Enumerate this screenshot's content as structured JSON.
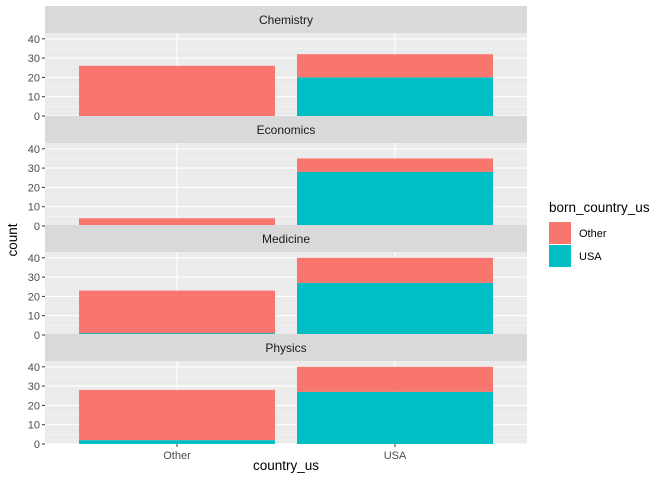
{
  "chart_data": {
    "type": "bar",
    "stacked": true,
    "facets": [
      "Chemistry",
      "Economics",
      "Medicine",
      "Physics"
    ],
    "categories": [
      "Other",
      "USA"
    ],
    "xlabel": "country_us",
    "ylabel": "count",
    "ylim": [
      0,
      43
    ],
    "yticks": [
      0,
      10,
      20,
      30,
      40
    ],
    "grid": true,
    "legend": {
      "title": "born_country_us",
      "position": "right",
      "entries": [
        {
          "name": "Other",
          "color": "#F8766D"
        },
        {
          "name": "USA",
          "color": "#00BFC4"
        }
      ]
    },
    "series": [
      {
        "name": "Other",
        "color": "#F8766D",
        "values": {
          "Chemistry": [
            26,
            12
          ],
          "Economics": [
            4,
            7
          ],
          "Medicine": [
            22,
            13
          ],
          "Physics": [
            26,
            13
          ]
        }
      },
      {
        "name": "USA",
        "color": "#00BFC4",
        "values": {
          "Chemistry": [
            0,
            20
          ],
          "Economics": [
            0,
            28
          ],
          "Medicine": [
            1,
            27
          ],
          "Physics": [
            2,
            27
          ]
        }
      }
    ]
  }
}
